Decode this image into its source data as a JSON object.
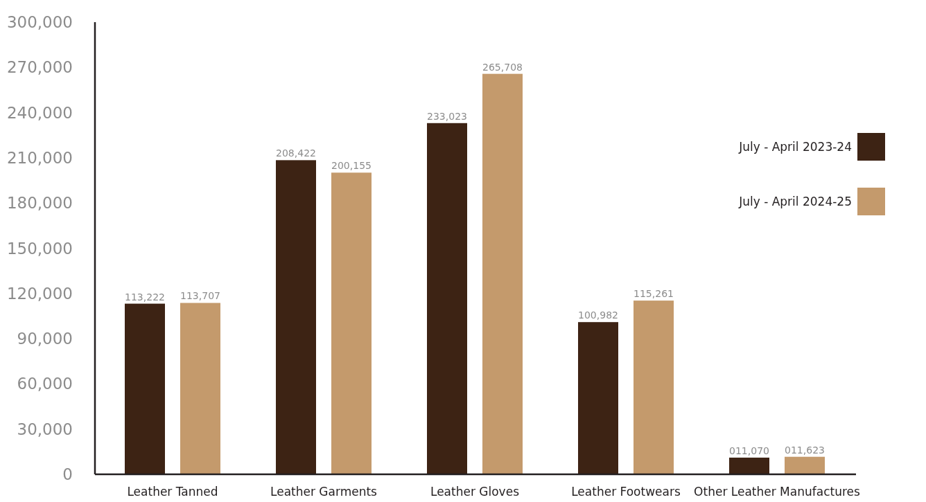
{
  "chart_data": {
    "type": "bar",
    "categories": [
      "Leather Tanned",
      "Leather Garments",
      "Leather Gloves",
      "Leather Footwears",
      "Other Leather Manufactures"
    ],
    "series": [
      {
        "name": "July - April 2023-24",
        "color": "#3d2314",
        "values": [
          113222,
          208422,
          233023,
          100982,
          11070
        ],
        "value_labels": [
          "113,222",
          "208,422",
          "233,023",
          "100,982",
          "011,070"
        ]
      },
      {
        "name": "July - April 2024-25",
        "color": "#c49a6c",
        "values": [
          113707,
          200155,
          265708,
          115261,
          11623
        ],
        "value_labels": [
          "113,707",
          "200,155",
          "265,708",
          "115,261",
          "011,623"
        ]
      }
    ],
    "ylim": [
      0,
      300000
    ],
    "yticks": [
      {
        "value": 0,
        "label": "0"
      },
      {
        "value": 30000,
        "label": "30,000"
      },
      {
        "value": 60000,
        "label": "60,000"
      },
      {
        "value": 90000,
        "label": "90,000"
      },
      {
        "value": 120000,
        "label": "120,000"
      },
      {
        "value": 150000,
        "label": "150,000"
      },
      {
        "value": 180000,
        "label": "180,000"
      },
      {
        "value": 210000,
        "label": "210,000"
      },
      {
        "value": 240000,
        "label": "240,000"
      },
      {
        "value": 270000,
        "label": "270,000"
      },
      {
        "value": 300000,
        "label": "300,000"
      }
    ],
    "grid": false,
    "legend": "right"
  }
}
